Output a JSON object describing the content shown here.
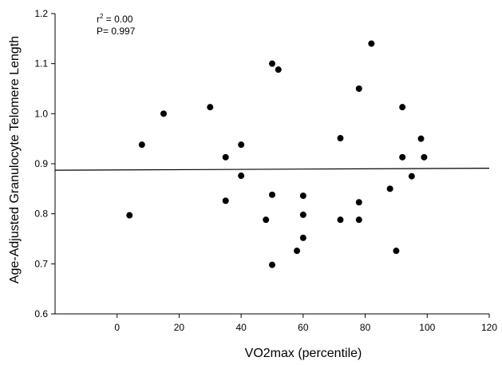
{
  "chart_data": {
    "type": "scatter",
    "xlabel": "VO2max (percentile)",
    "ylabel": "Age-Adjusted Granulocyte Telomere Length",
    "xlim": [
      -20,
      120
    ],
    "ylim": [
      0.6,
      1.2
    ],
    "xticks": [
      "0",
      "20",
      "40",
      "60",
      "80",
      "100",
      "120"
    ],
    "xtick_values": [
      0,
      20,
      40,
      60,
      80,
      100,
      120
    ],
    "yticks": [
      "0.6",
      "0.7",
      "0.8",
      "0.9",
      "1.0",
      "1.1",
      "1.2"
    ],
    "ytick_values": [
      0.6,
      0.7,
      0.8,
      0.9,
      1.0,
      1.1,
      1.2
    ],
    "grid": false,
    "annotations": {
      "r2_prefix": "r",
      "r2_sup": "2",
      "r2_value": " = 0.00",
      "p_text": "P= 0.997"
    },
    "regression_line": {
      "x": [
        -20,
        120
      ],
      "y": [
        0.887,
        0.891
      ]
    },
    "points": [
      {
        "x": 4,
        "y": 0.797
      },
      {
        "x": 8,
        "y": 0.938
      },
      {
        "x": 15,
        "y": 1.0
      },
      {
        "x": 30,
        "y": 1.013
      },
      {
        "x": 35,
        "y": 0.913
      },
      {
        "x": 35,
        "y": 0.826
      },
      {
        "x": 40,
        "y": 0.938
      },
      {
        "x": 40,
        "y": 0.876
      },
      {
        "x": 48,
        "y": 0.788
      },
      {
        "x": 50,
        "y": 1.1
      },
      {
        "x": 50,
        "y": 0.838
      },
      {
        "x": 50,
        "y": 0.698
      },
      {
        "x": 52,
        "y": 1.088
      },
      {
        "x": 58,
        "y": 0.726
      },
      {
        "x": 60,
        "y": 0.836
      },
      {
        "x": 60,
        "y": 0.798
      },
      {
        "x": 60,
        "y": 0.752
      },
      {
        "x": 72,
        "y": 0.951
      },
      {
        "x": 72,
        "y": 0.788
      },
      {
        "x": 78,
        "y": 1.05
      },
      {
        "x": 78,
        "y": 0.823
      },
      {
        "x": 78,
        "y": 0.788
      },
      {
        "x": 82,
        "y": 1.14
      },
      {
        "x": 88,
        "y": 0.85
      },
      {
        "x": 90,
        "y": 0.726
      },
      {
        "x": 92,
        "y": 1.013
      },
      {
        "x": 92,
        "y": 0.913
      },
      {
        "x": 95,
        "y": 0.875
      },
      {
        "x": 98,
        "y": 0.95
      },
      {
        "x": 99,
        "y": 0.913
      }
    ]
  }
}
